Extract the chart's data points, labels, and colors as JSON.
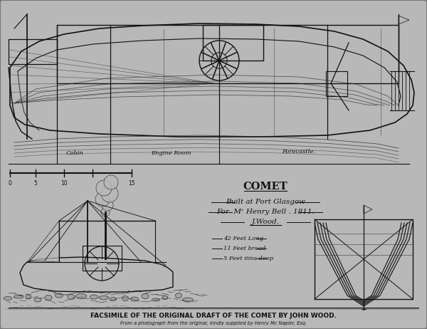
{
  "background_color": "#b0b0b0",
  "inner_bg": "#b8b8b8",
  "line_color": "#2a2a2a",
  "dark_line": "#111111",
  "text_color": "#111111",
  "title_text": "FACSIMILE OF THE ORIGINAL DRAFT OF THE COMET BY JOHN WOOD.",
  "subtitle_text": "From a photograph from the original, kindly supplied by Henry Mc Napier, Esq.",
  "main_caption_title": "COMET",
  "main_caption_line1": "Built at Port Glasgow",
  "main_caption_line2": "For  Mʳ Henry Bell . 1811.",
  "main_caption_line3": "J.Wood.",
  "spec_line1": "42 Feet Long",
  "spec_line2": "11 Feet broad",
  "spec_line3": "5 Feet 6ins deep",
  "room_label1": "Cabin",
  "room_label2": "Engine Room",
  "room_label3": "Forecastle.",
  "fig_width": 6.0,
  "fig_height": 4.62,
  "dpi": 100
}
